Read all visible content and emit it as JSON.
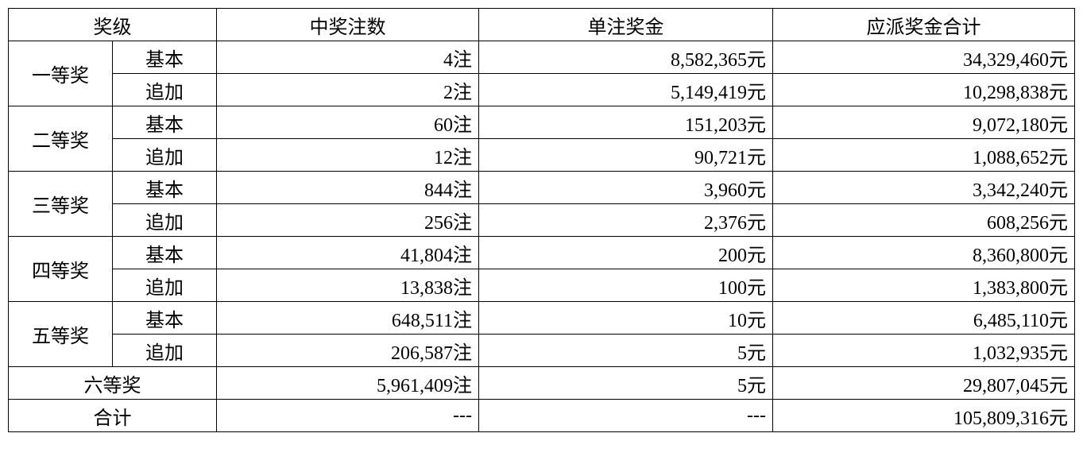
{
  "headers": {
    "tier": "奖级",
    "count": "中奖注数",
    "amount": "单注奖金",
    "total": "应派奖金合计"
  },
  "type_basic": "基本",
  "type_addl": "追加",
  "tiers": [
    {
      "name": "一等奖",
      "basic": {
        "count": "4注",
        "amount": "8,582,365元",
        "total": "34,329,460元"
      },
      "addl": {
        "count": "2注",
        "amount": "5,149,419元",
        "total": "10,298,838元"
      }
    },
    {
      "name": "二等奖",
      "basic": {
        "count": "60注",
        "amount": "151,203元",
        "total": "9,072,180元"
      },
      "addl": {
        "count": "12注",
        "amount": "90,721元",
        "total": "1,088,652元"
      }
    },
    {
      "name": "三等奖",
      "basic": {
        "count": "844注",
        "amount": "3,960元",
        "total": "3,342,240元"
      },
      "addl": {
        "count": "256注",
        "amount": "2,376元",
        "total": "608,256元"
      }
    },
    {
      "name": "四等奖",
      "basic": {
        "count": "41,804注",
        "amount": "200元",
        "total": "8,360,800元"
      },
      "addl": {
        "count": "13,838注",
        "amount": "100元",
        "total": "1,383,800元"
      }
    },
    {
      "name": "五等奖",
      "basic": {
        "count": "648,511注",
        "amount": "10元",
        "total": "6,485,110元"
      },
      "addl": {
        "count": "206,587注",
        "amount": "5元",
        "total": "1,032,935元"
      }
    }
  ],
  "sixth": {
    "name": "六等奖",
    "count": "5,961,409注",
    "amount": "5元",
    "total": "29,807,045元"
  },
  "totalrow": {
    "name": "合计",
    "count": "---",
    "amount": "---",
    "total": "105,809,316元"
  }
}
